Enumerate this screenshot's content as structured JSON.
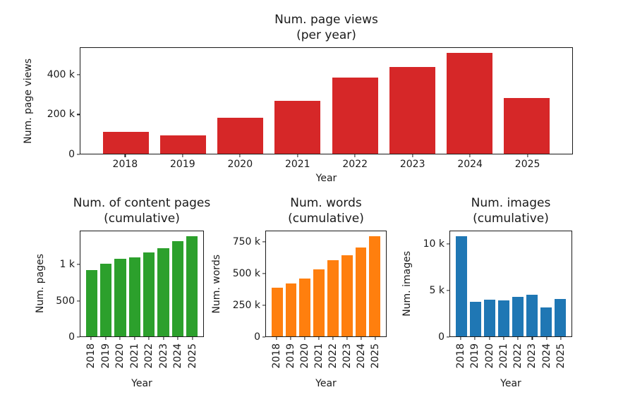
{
  "figure": {
    "background": "#ffffff",
    "text_color": "#1a1a1a"
  },
  "chart_data": [
    {
      "type": "bar",
      "title_line1": "Num. page views",
      "title_line2": "(per year)",
      "xlabel": "Year",
      "ylabel": "Num. page views",
      "color": "#d62728",
      "categories": [
        "2018",
        "2019",
        "2020",
        "2021",
        "2022",
        "2023",
        "2024",
        "2025"
      ],
      "values": [
        111000,
        95000,
        183000,
        268000,
        389000,
        440000,
        512000,
        283000
      ],
      "ylim": [
        0,
        538000
      ],
      "yticks": [
        {
          "value": 0,
          "label": "0"
        },
        {
          "value": 200000,
          "label": "200 k"
        },
        {
          "value": 400000,
          "label": "400 k"
        }
      ],
      "xtick_rotation": 0,
      "grid": false,
      "legend": null
    },
    {
      "type": "bar",
      "title_line1": "Num. of content pages",
      "title_line2": "(cumulative)",
      "xlabel": "Year",
      "ylabel": "Num. pages",
      "color": "#2ca02c",
      "categories": [
        "2018",
        "2019",
        "2020",
        "2021",
        "2022",
        "2023",
        "2024",
        "2025"
      ],
      "values": [
        930,
        1015,
        1090,
        1105,
        1175,
        1235,
        1335,
        1400
      ],
      "ylim": [
        0,
        1470
      ],
      "yticks": [
        {
          "value": 0,
          "label": "0"
        },
        {
          "value": 500,
          "label": "500"
        },
        {
          "value": 1000,
          "label": "1 k"
        }
      ],
      "xtick_rotation": 90,
      "grid": false,
      "legend": null
    },
    {
      "type": "bar",
      "title_line1": "Num. words",
      "title_line2": "(cumulative)",
      "xlabel": "Year",
      "ylabel": "Num. words",
      "color": "#ff7f0e",
      "categories": [
        "2018",
        "2019",
        "2020",
        "2021",
        "2022",
        "2023",
        "2024",
        "2025"
      ],
      "values": [
        390000,
        425000,
        465000,
        535000,
        610000,
        650000,
        710000,
        800000
      ],
      "ylim": [
        0,
        840000
      ],
      "yticks": [
        {
          "value": 0,
          "label": "0"
        },
        {
          "value": 250000,
          "label": "250 k"
        },
        {
          "value": 500000,
          "label": "500 k"
        },
        {
          "value": 750000,
          "label": "750 k"
        }
      ],
      "xtick_rotation": 90,
      "grid": false,
      "legend": null
    },
    {
      "type": "bar",
      "title_line1": "Num. images",
      "title_line2": "(cumulative)",
      "xlabel": "Year",
      "ylabel": "Num. images",
      "color": "#1f77b4",
      "categories": [
        "2018",
        "2019",
        "2020",
        "2021",
        "2022",
        "2023",
        "2024",
        "2025"
      ],
      "values": [
        10900,
        3750,
        4000,
        3950,
        4300,
        4570,
        3170,
        4060
      ],
      "ylim": [
        0,
        11445
      ],
      "yticks": [
        {
          "value": 0,
          "label": "0"
        },
        {
          "value": 5000,
          "label": "5 k"
        },
        {
          "value": 10000,
          "label": "10 k"
        }
      ],
      "xtick_rotation": 90,
      "grid": false,
      "legend": null
    }
  ]
}
